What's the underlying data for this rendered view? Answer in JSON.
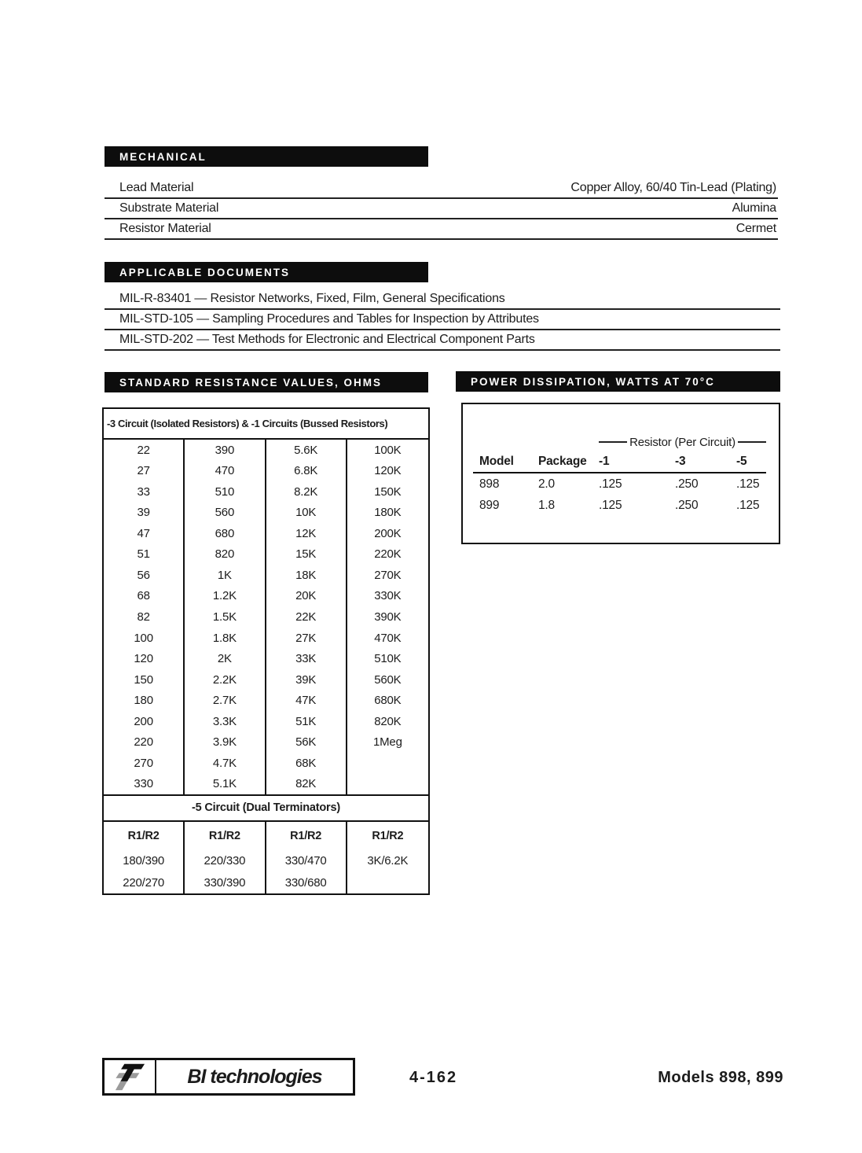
{
  "mechanical": {
    "title": "MECHANICAL",
    "rows": [
      {
        "label": "Lead Material",
        "value": "Copper Alloy, 60/40 Tin-Lead (Plating)"
      },
      {
        "label": "Substrate Material",
        "value": "Alumina"
      },
      {
        "label": "Resistor Material",
        "value": "Cermet"
      }
    ]
  },
  "applicable_documents": {
    "title": "APPLICABLE DOCUMENTS",
    "items": [
      "MIL-R-83401 — Resistor Networks, Fixed, Film, General Specifications",
      "MIL-STD-105 — Sampling Procedures and Tables for Inspection by Attributes",
      "MIL-STD-202 — Test Methods for Electronic and Electrical Component Parts"
    ]
  },
  "resistance": {
    "title": "STANDARD RESISTANCE VALUES, OHMS",
    "group1": {
      "header": "-3 Circuit (Isolated Resistors) & -1 Circuits (Bussed Resistors)",
      "rows": [
        [
          "22",
          "390",
          "5.6K",
          "100K"
        ],
        [
          "27",
          "470",
          "6.8K",
          "120K"
        ],
        [
          "33",
          "510",
          "8.2K",
          "150K"
        ],
        [
          "39",
          "560",
          "10K",
          "180K"
        ],
        [
          "47",
          "680",
          "12K",
          "200K"
        ],
        [
          "51",
          "820",
          "15K",
          "220K"
        ],
        [
          "56",
          "1K",
          "18K",
          "270K"
        ],
        [
          "68",
          "1.2K",
          "20K",
          "330K"
        ],
        [
          "82",
          "1.5K",
          "22K",
          "390K"
        ],
        [
          "100",
          "1.8K",
          "27K",
          "470K"
        ],
        [
          "120",
          "2K",
          "33K",
          "510K"
        ],
        [
          "150",
          "2.2K",
          "39K",
          "560K"
        ],
        [
          "180",
          "2.7K",
          "47K",
          "680K"
        ],
        [
          "200",
          "3.3K",
          "51K",
          "820K"
        ],
        [
          "220",
          "3.9K",
          "56K",
          "1Meg"
        ],
        [
          "270",
          "4.7K",
          "68K",
          ""
        ],
        [
          "330",
          "5.1K",
          "82K",
          ""
        ]
      ]
    },
    "group2": {
      "header": "-5 Circuit (Dual Terminators)",
      "col_headers": [
        "R1/R2",
        "R1/R2",
        "R1/R2",
        "R1/R2"
      ],
      "rows": [
        [
          "180/390",
          "220/330",
          "330/470",
          "3K/6.2K"
        ],
        [
          "220/270",
          "330/390",
          "330/680",
          ""
        ]
      ]
    }
  },
  "power": {
    "title": "POWER DISSIPATION, WATTS AT 70°C",
    "span_header": "Resistor (Per Circuit)",
    "col_headers": [
      "Model",
      "Package",
      "-1",
      "-3",
      "-5"
    ],
    "rows": [
      [
        "898",
        "2.0",
        ".125",
        ".250",
        ".125"
      ],
      [
        "899",
        "1.8",
        ".125",
        ".250",
        ".125"
      ]
    ]
  },
  "footer": {
    "brand": "BI technologies",
    "page_number": "4-162",
    "models": "Models 898, 899"
  },
  "colors": {
    "bar_background": "#0d0d0d",
    "bar_text": "#ffffff",
    "ink": "#1c1c1c",
    "logo_gray": "#9b9b9b"
  }
}
